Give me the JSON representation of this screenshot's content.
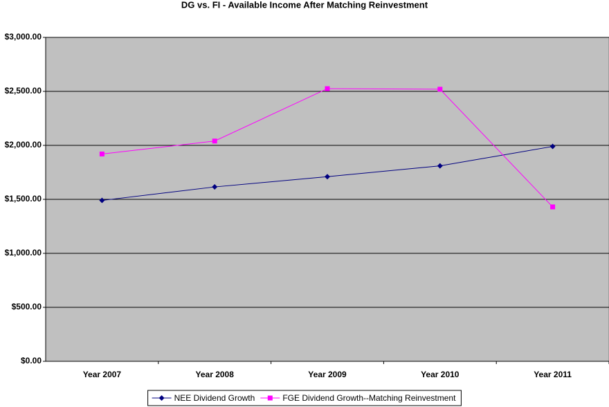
{
  "chart_data": {
    "type": "line",
    "title": "DG vs. FI - Available Income After Matching Reinvestment",
    "categories": [
      "Year 2007",
      "Year 2008",
      "Year 2009",
      "Year 2010",
      "Year 2011"
    ],
    "series": [
      {
        "name": "NEE Dividend Growth",
        "color": "#000080",
        "marker": "diamond",
        "values": [
          1490,
          1615,
          1710,
          1810,
          1990
        ]
      },
      {
        "name": "FGE Dividend Growth--Matching Reinvestment",
        "color": "#ff00ff",
        "marker": "square",
        "values": [
          1920,
          2040,
          2525,
          2520,
          1430
        ]
      }
    ],
    "ylim": [
      0,
      3000
    ],
    "yticks": [
      {
        "value": 0,
        "label": "$0.00"
      },
      {
        "value": 500,
        "label": "$500.00"
      },
      {
        "value": 1000,
        "label": "$1,000.00"
      },
      {
        "value": 1500,
        "label": "$1,500.00"
      },
      {
        "value": 2000,
        "label": "$2,000.00"
      },
      {
        "value": 2500,
        "label": "$2,500.00"
      },
      {
        "value": 3000,
        "label": "$3,000.00"
      }
    ],
    "grid": true,
    "legend": "bottom"
  }
}
